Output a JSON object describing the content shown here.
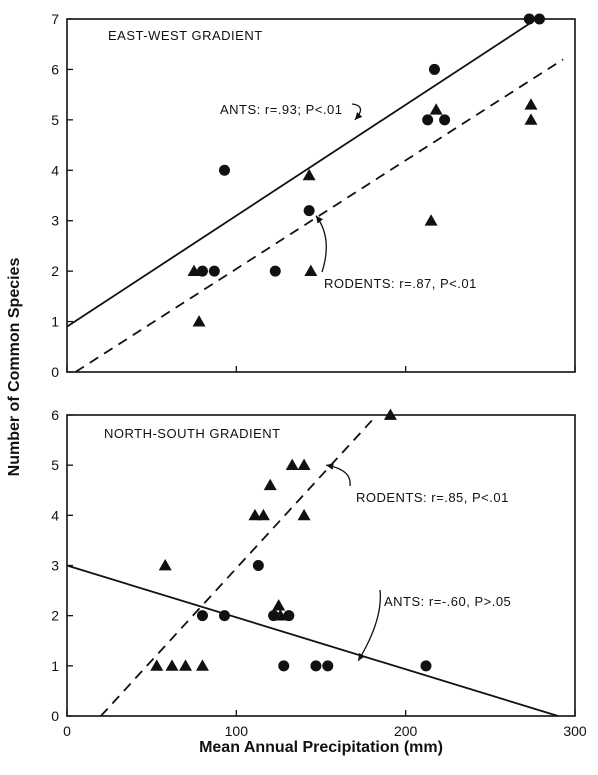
{
  "colors": {
    "ink": "#111111",
    "background": "#ffffff"
  },
  "axes": {
    "xlabel": "Mean Annual Precipitation (mm)",
    "ylabel": "Number of Common Species"
  },
  "chart_data": [
    {
      "type": "scatter",
      "title": "EAST-WEST GRADIENT",
      "xlim": [
        0,
        300
      ],
      "ylim": [
        0,
        7
      ],
      "x_ticks": [
        0,
        100,
        200,
        300
      ],
      "y_ticks": [
        0,
        1,
        2,
        3,
        4,
        5,
        6,
        7
      ],
      "show_x_tick_labels": false,
      "series": [
        {
          "name": "ANTS",
          "marker": "circle",
          "points": [
            [
              80,
              2
            ],
            [
              87,
              2
            ],
            [
              93,
              4
            ],
            [
              123,
              2
            ],
            [
              143,
              3.2
            ],
            [
              213,
              5
            ],
            [
              217,
              6
            ],
            [
              223,
              5
            ],
            [
              273,
              7
            ],
            [
              279,
              7
            ]
          ],
          "fit": {
            "style": "solid",
            "x": [
              0,
              275
            ],
            "y": [
              0.9,
              6.95
            ]
          }
        },
        {
          "name": "RODENTS",
          "marker": "triangle",
          "points": [
            [
              75,
              2
            ],
            [
              78,
              1
            ],
            [
              143,
              3.9
            ],
            [
              144,
              2
            ],
            [
              215,
              3
            ],
            [
              218,
              5.2
            ],
            [
              274,
              5.3
            ],
            [
              274,
              5
            ]
          ],
          "fit": {
            "style": "dashed",
            "x": [
              5,
              293
            ],
            "y": [
              0,
              6.2
            ]
          }
        }
      ],
      "annotations": [
        {
          "text": "ANTS: r=.93; P<.01",
          "target_series": "ANTS",
          "arrow_to": [
            170,
            5.0
          ]
        },
        {
          "text": "RODENTS: r=.87, P<.01",
          "target_series": "RODENTS",
          "arrow_to": [
            147,
            3.1
          ]
        }
      ]
    },
    {
      "type": "scatter",
      "title": "NORTH-SOUTH GRADIENT",
      "xlim": [
        0,
        300
      ],
      "ylim": [
        0,
        6
      ],
      "x_ticks": [
        0,
        100,
        200,
        300
      ],
      "y_ticks": [
        0,
        1,
        2,
        3,
        4,
        5,
        6
      ],
      "show_x_tick_labels": true,
      "series": [
        {
          "name": "ANTS",
          "marker": "circle",
          "points": [
            [
              80,
              2
            ],
            [
              93,
              2
            ],
            [
              113,
              3
            ],
            [
              122,
              2
            ],
            [
              128,
              1
            ],
            [
              131,
              2
            ],
            [
              147,
              1
            ],
            [
              154,
              1
            ],
            [
              212,
              1
            ]
          ],
          "fit": {
            "style": "solid",
            "x": [
              0,
              290
            ],
            "y": [
              3.0,
              0
            ]
          }
        },
        {
          "name": "RODENTS",
          "marker": "triangle",
          "points": [
            [
              53,
              1
            ],
            [
              58,
              3
            ],
            [
              62,
              1
            ],
            [
              70,
              1
            ],
            [
              80,
              1
            ],
            [
              111,
              4
            ],
            [
              116,
              4
            ],
            [
              120,
              4.6
            ],
            [
              125,
              2.2
            ],
            [
              126,
              2
            ],
            [
              133,
              5
            ],
            [
              140,
              5
            ],
            [
              140,
              4
            ],
            [
              191,
              6
            ]
          ],
          "fit": {
            "style": "dashed",
            "x": [
              20,
              183
            ],
            "y": [
              0,
              6.0
            ]
          }
        }
      ],
      "annotations": [
        {
          "text": "RODENTS: r=.85, P<.01",
          "target_series": "RODENTS",
          "arrow_to": [
            153,
            5.0
          ]
        },
        {
          "text": "ANTS: r=-.60, P>.05",
          "target_series": "ANTS",
          "arrow_to": [
            172,
            1.1
          ]
        }
      ]
    }
  ]
}
